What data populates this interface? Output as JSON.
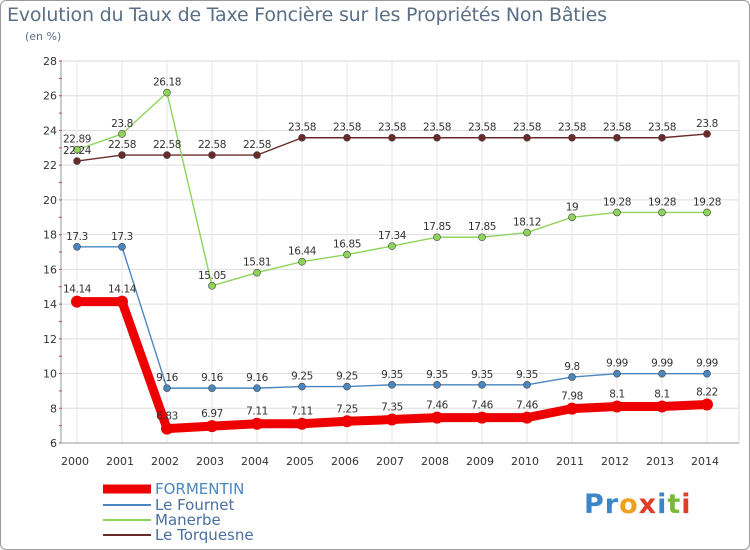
{
  "chart_data": {
    "type": "line",
    "title": "Evolution du Taux de Taxe Foncière sur les Propriétés Non Bâties",
    "ylabel": "(en %)",
    "xlabel": "",
    "x": [
      "2000",
      "2001",
      "2002",
      "2003",
      "2004",
      "2005",
      "2006",
      "2007",
      "2008",
      "2009",
      "2010",
      "2011",
      "2012",
      "2013",
      "2014"
    ],
    "ylim": [
      6,
      28
    ],
    "yticks": [
      6,
      8,
      10,
      12,
      14,
      16,
      18,
      20,
      22,
      24,
      26,
      28
    ],
    "grid": true,
    "legend_position": "bottom-left",
    "series": [
      {
        "name": "FORMENTIN",
        "color": "#ee0000",
        "values": [
          14.14,
          14.14,
          6.83,
          6.97,
          7.11,
          7.11,
          7.25,
          7.35,
          7.46,
          7.46,
          7.46,
          7.98,
          8.1,
          8.1,
          8.22
        ],
        "labels": [
          "14.14",
          "14.14",
          "6.83",
          "6.97",
          "7.11",
          "7.11",
          "7.25",
          "7.35",
          "7.46",
          "7.46",
          "7.46",
          "7.98",
          "8.1",
          "8.1",
          "8.22"
        ]
      },
      {
        "name": "Le Fournet",
        "color": "#4a86c0",
        "values": [
          17.3,
          17.3,
          9.16,
          9.16,
          9.16,
          9.25,
          9.25,
          9.35,
          9.35,
          9.35,
          9.35,
          9.8,
          9.99,
          9.99,
          9.99
        ],
        "labels": [
          "17.3",
          "17.3",
          "9.16",
          "9.16",
          "9.16",
          "9.25",
          "9.25",
          "9.35",
          "9.35",
          "9.35",
          "9.35",
          "9.8",
          "9.99",
          "9.99",
          "9.99"
        ]
      },
      {
        "name": "Manerbe",
        "color": "#8ed45a",
        "values": [
          22.89,
          23.8,
          26.18,
          15.05,
          15.81,
          16.44,
          16.85,
          17.34,
          17.85,
          17.85,
          18.12,
          19,
          19.28,
          19.28,
          19.28
        ],
        "labels": [
          "22.89",
          "23.8",
          "26.18",
          "15.05",
          "15.81",
          "16.44",
          "16.85",
          "17.34",
          "17.85",
          "17.85",
          "18.12",
          "19",
          "19.28",
          "19.28",
          "19.28"
        ]
      },
      {
        "name": "Le Torquesne",
        "color": "#6b2a2a",
        "values": [
          22.24,
          22.58,
          22.58,
          22.58,
          22.58,
          23.58,
          23.58,
          23.58,
          23.58,
          23.58,
          23.58,
          23.58,
          23.58,
          23.58,
          23.8
        ],
        "labels": [
          "22.24",
          "22.58",
          "22.58",
          "22.58",
          "22.58",
          "23.58",
          "23.58",
          "23.58",
          "23.58",
          "23.58",
          "23.58",
          "23.58",
          "23.58",
          "23.58",
          "23.8"
        ]
      }
    ]
  },
  "logo": {
    "text": "Proxiti"
  }
}
